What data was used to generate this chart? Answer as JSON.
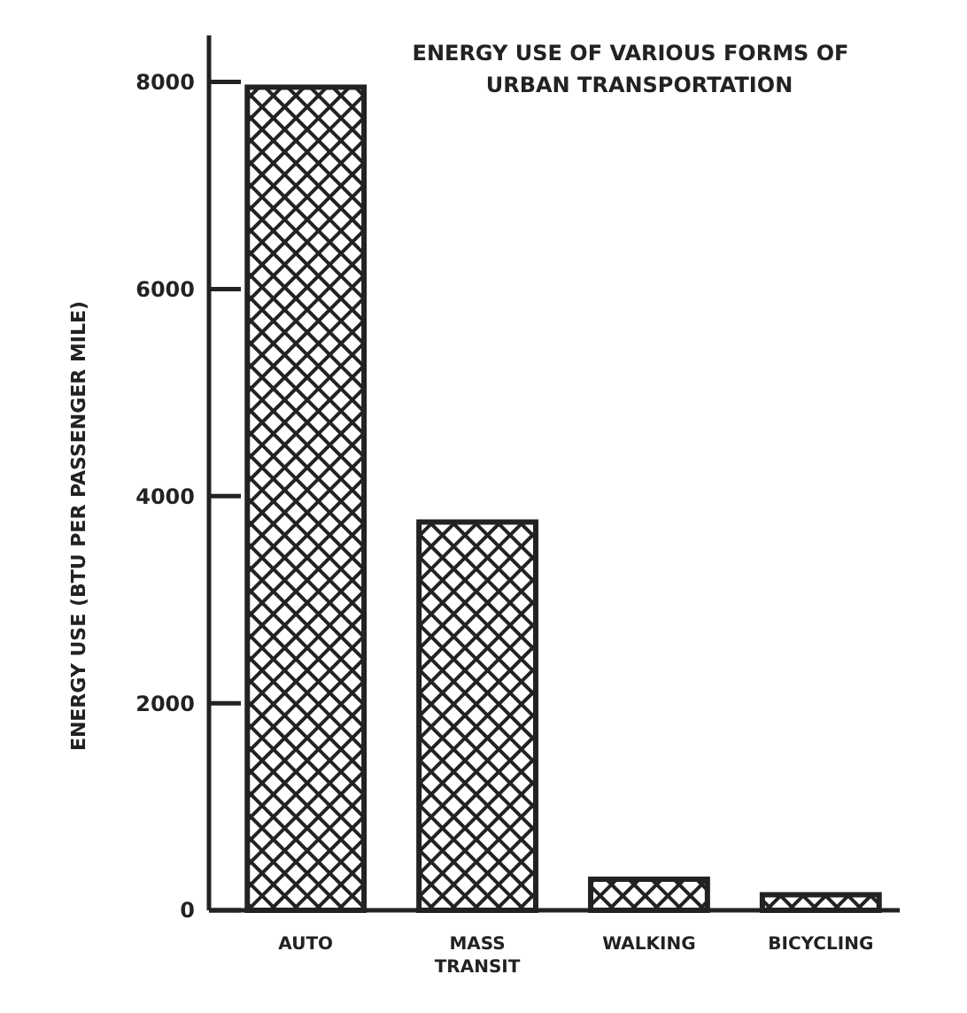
{
  "chart_data": {
    "type": "bar",
    "title": "ENERGY USE OF VARIOUS FORMS OF\nURBAN TRANSPORTATION",
    "ylabel": "ENERGY USE (BTU PER PASSENGER MILE)",
    "categories": [
      "AUTO",
      "MASS\nTRANSIT",
      "WALKING",
      "BICYCLING"
    ],
    "values": [
      7950,
      3750,
      300,
      150
    ],
    "color": "#222222",
    "ylim": [
      0,
      8450
    ],
    "yticks": [
      0,
      2000,
      4000,
      6000,
      8000
    ],
    "grid": false
  }
}
